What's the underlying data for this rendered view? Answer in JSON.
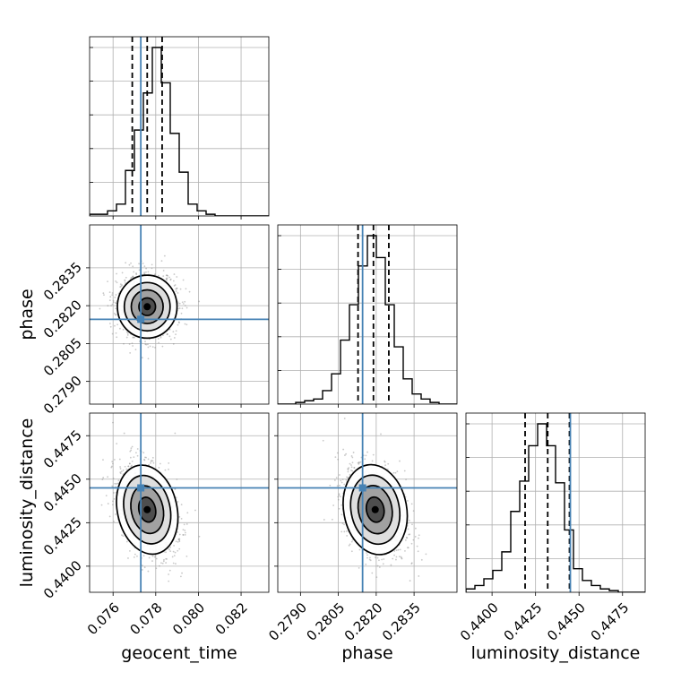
{
  "chart_data": {
    "type": "corner",
    "parameters": [
      "geocent_time",
      "phase",
      "luminosity_distance"
    ],
    "axis_labels": {
      "geocent_time": "geocent_time",
      "phase": "phase",
      "luminosity_distance": "luminosity_distance"
    },
    "ranges": {
      "geocent_time": [
        0.0749,
        0.0833
      ],
      "phase": [
        0.2781,
        0.2852
      ],
      "luminosity_distance": [
        0.4385,
        0.4488
      ]
    },
    "ticks": {
      "geocent_time": [
        "0.076",
        "0.078",
        "0.080",
        "0.082"
      ],
      "phase": [
        "0.2790",
        "0.2805",
        "0.2820",
        "0.2835"
      ],
      "luminosity_distance": [
        "0.4400",
        "0.4425",
        "0.4450",
        "0.4475"
      ]
    },
    "truths": {
      "geocent_time": 0.0773,
      "phase": 0.28146,
      "luminosity_distance": 0.4445
    },
    "quantiles": {
      "geocent_time": [
        0.0769,
        0.0776,
        0.0783
      ],
      "phase": [
        0.28128,
        0.28189,
        0.2825
      ],
      "luminosity_distance": [
        0.4419,
        0.4432,
        0.44445
      ]
    },
    "posterior_means": {
      "geocent_time": 0.0776,
      "phase": 0.28196,
      "luminosity_distance": 0.44325
    },
    "posterior_sigma": {
      "geocent_time": 0.00065,
      "phase": 0.00058,
      "luminosity_distance": 0.00125
    },
    "histograms": {
      "geocent_time": [
        1,
        1,
        3,
        7,
        27,
        51,
        73,
        100,
        79,
        49,
        26,
        7,
        3,
        1,
        0,
        0,
        0,
        0,
        0,
        0
      ],
      "phase": [
        0,
        0,
        1,
        2,
        3,
        8,
        18,
        38,
        59,
        82,
        100,
        87,
        59,
        34,
        15,
        6,
        3,
        1,
        0,
        0
      ],
      "luminosity_distance": [
        2,
        4,
        8,
        13,
        24,
        48,
        66,
        87,
        100,
        87,
        65,
        37,
        14,
        7,
        4,
        2,
        1,
        0,
        0,
        0
      ]
    },
    "correlations": {
      "phase_vs_geocent_time": 0.0,
      "luminosity_distance_vs_geocent_time": -0.35,
      "luminosity_distance_vs_phase": -0.3
    },
    "grid": true,
    "truth_color": "#4682b4",
    "line_color": "#000000",
    "grid_color": "#b0b0b0",
    "point_color": "#888888"
  }
}
